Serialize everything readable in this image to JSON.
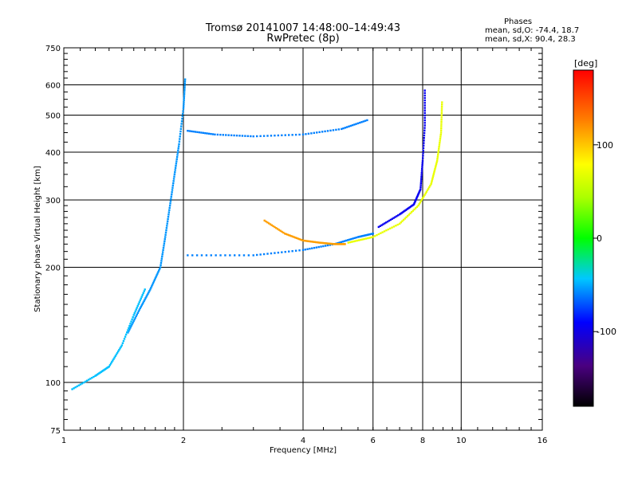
{
  "header": {
    "title_line1": "Tromsø 20141007 14:48:00–14:49:43",
    "title_line2": "RwPretec (8p)"
  },
  "phases": {
    "heading": "Phases",
    "line_o": "mean, sd,O: -74.4, 18.7",
    "line_x": "mean, sd,X:  90.4, 28.3"
  },
  "chart_data": {
    "type": "scatter",
    "title": "Tromsø 20141007 14:48:00–14:49:43",
    "subtitle": "RwPretec (8p)",
    "xlabel": "Frequency [MHz]",
    "ylabel": "Stationary phase Virtual Height [km]",
    "xscale": "log",
    "yscale": "log",
    "xlim": [
      1,
      16
    ],
    "ylim": [
      75,
      750
    ],
    "x_ticks": [
      1,
      2,
      4,
      6,
      8,
      10,
      16
    ],
    "x_tick_labels": [
      "1",
      "2",
      "4",
      "6",
      "8",
      "10",
      "16"
    ],
    "y_ticks": [
      75,
      100,
      200,
      300,
      400,
      500,
      600,
      750
    ],
    "y_tick_labels": [
      "75",
      "100",
      "200",
      "300",
      "400",
      "500",
      "600",
      "750"
    ],
    "grid": true,
    "colorbar": {
      "label": "[deg]",
      "range": [
        -180,
        180
      ],
      "ticks": [
        100,
        0,
        -100
      ],
      "tick_labels": [
        "100",
        "0",
        "-100"
      ]
    },
    "series": [
      {
        "traces": [
          {
            "f": [
              2.05,
              3.0,
              4.0,
              4.8,
              5.5,
              6.0
            ],
            "h": [
              215,
              215,
              222,
              230,
              240,
              245
            ],
            "phase": -60
          },
          {
            "f": [
              2.05,
              2.4,
              3.0,
              4.0,
              5.0,
              5.8
            ],
            "h": [
              455,
              445,
              440,
              445,
              460,
              485
            ],
            "phase": -60
          },
          {
            "f": [
              6.2,
              7.0,
              7.6,
              7.9,
              8.0,
              8.1,
              8.1
            ],
            "h": [
              255,
              275,
              292,
              320,
              380,
              470,
              580
            ],
            "phase": -95
          },
          {
            "f": [
              1.45,
              1.55,
              1.65,
              1.75,
              1.8,
              1.85,
              1.9,
              1.95,
              2.0,
              2.02
            ],
            "h": [
              135,
              155,
              175,
              200,
              240,
              290,
              350,
              420,
              520,
              620
            ],
            "phase": -55
          },
          {
            "f": [
              3.2,
              3.6,
              4.0,
              4.4,
              4.8,
              5.1
            ],
            "h": [
              265,
              245,
              235,
              232,
              230,
              230
            ],
            "phase": 115
          },
          {
            "f": [
              5.2,
              6.0,
              7.0,
              7.8,
              8.4,
              8.7,
              8.9,
              8.95
            ],
            "h": [
              232,
              240,
              260,
              290,
              330,
              380,
              450,
              540
            ],
            "phase": 70
          },
          {
            "f": [
              1.05,
              1.2,
              1.3,
              1.4,
              1.5,
              1.6
            ],
            "h": [
              96,
              104,
              110,
              125,
              150,
              175
            ],
            "phase": -45
          }
        ]
      }
    ]
  }
}
